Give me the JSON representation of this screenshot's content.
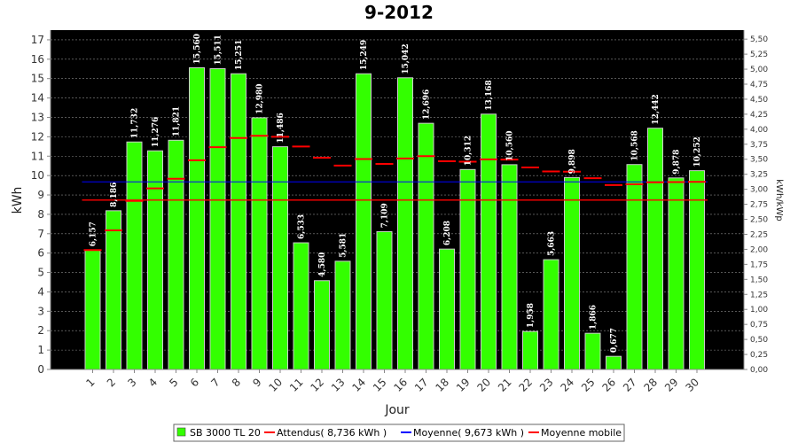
{
  "chart_data": {
    "type": "bar",
    "title": "9-2012",
    "xlabel": "Jour",
    "ylabel": "kWh",
    "y2label": "kWh/kWp",
    "ylim": [
      0,
      17.5
    ],
    "y2lim": [
      0,
      5.65
    ],
    "grid": true,
    "legend_position": "bottom",
    "categories": [
      "1",
      "2",
      "3",
      "4",
      "5",
      "6",
      "7",
      "8",
      "9",
      "10",
      "11",
      "12",
      "13",
      "14",
      "15",
      "16",
      "17",
      "18",
      "19",
      "20",
      "21",
      "22",
      "23",
      "24",
      "25",
      "26",
      "27",
      "28",
      "29",
      "30"
    ],
    "data_labels": [
      "6,157",
      "8,186",
      "11,732",
      "11,276",
      "11,821",
      "15,560",
      "15,511",
      "15,251",
      "12,980",
      "11,486",
      "6,533",
      "4,580",
      "5,581",
      "15,249",
      "7,109",
      "15,042",
      "12,696",
      "6,208",
      "10,312",
      "13,168",
      "10,560",
      "1,958",
      "5,663",
      "9,898",
      "1,866",
      "0,677",
      "10,568",
      "12,442",
      "9,878",
      "10,252"
    ],
    "yticks": [
      "0",
      "1",
      "2",
      "3",
      "4",
      "5",
      "6",
      "7",
      "8",
      "9",
      "10",
      "11",
      "12",
      "13",
      "14",
      "15",
      "16",
      "17"
    ],
    "y2ticks": [
      "0,00",
      "0,25",
      "0,50",
      "0,75",
      "1,00",
      "1,25",
      "1,50",
      "1,75",
      "2,00",
      "2,25",
      "2,50",
      "2,75",
      "3,00",
      "3,25",
      "3,50",
      "3,75",
      "4,00",
      "4,25",
      "4,50",
      "4,75",
      "5,00",
      "5,25",
      "5,50"
    ],
    "series": [
      {
        "name": "SB 3000 TL 20",
        "kind": "bar",
        "color": "#33ff00",
        "values": [
          6.157,
          8.186,
          11.732,
          11.276,
          11.821,
          15.56,
          15.511,
          15.251,
          12.98,
          11.486,
          6.533,
          4.58,
          5.581,
          15.249,
          7.109,
          15.042,
          12.696,
          6.208,
          10.312,
          13.168,
          10.56,
          1.958,
          5.663,
          9.898,
          1.866,
          0.677,
          10.568,
          12.442,
          9.878,
          10.252
        ]
      },
      {
        "name": "Attendus( 8,736 kWh )",
        "kind": "line",
        "color": "#ff0000",
        "value": 8.736
      },
      {
        "name": "Moyenne( 9,673 kWh )",
        "kind": "line",
        "color": "#0000ff",
        "value": 9.673
      },
      {
        "name": "Moyenne mobile",
        "kind": "marker",
        "color": "#ff0000",
        "values": [
          6.157,
          7.172,
          8.692,
          9.338,
          9.835,
          10.789,
          11.464,
          11.938,
          12.054,
          11.997,
          11.5,
          10.923,
          10.512,
          10.85,
          10.601,
          10.878,
          11.001,
          10.735,
          10.713,
          10.834,
          10.821,
          10.418,
          10.211,
          10.198,
          9.865,
          9.512,
          9.552,
          9.655,
          9.662,
          9.673
        ]
      }
    ]
  }
}
